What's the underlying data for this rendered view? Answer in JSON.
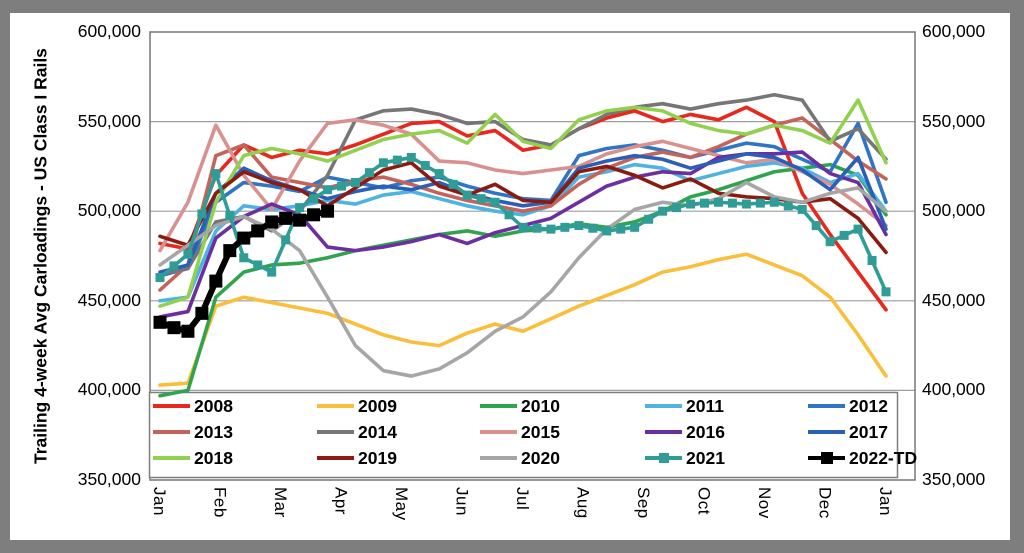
{
  "frame": {
    "outer_background": "#7E7E7E",
    "panel_background": "#FFFFFF",
    "plot_border_color": "#7F7F7F",
    "gridline_color": "#9E9E9E"
  },
  "chart_data": {
    "type": "line",
    "title": "",
    "ylabel": "Trailing 4-week Avg Carloadings - US Class I Rails",
    "xlabel": "",
    "x_unit": "weeks",
    "points_per_year": 52,
    "grid": "horizontal",
    "legend_position": "bottom-inside",
    "x_tick_labels": [
      "Jan",
      "Feb",
      "Mar",
      "Apr",
      "May",
      "Jun",
      "Jul",
      "Aug",
      "Sep",
      "Oct",
      "Nov",
      "Dec",
      "Jan"
    ],
    "y_axis": {
      "min": 350000,
      "max": 600000,
      "step": 50000,
      "tick_labels": [
        "600,000",
        "550,000",
        "500,000",
        "450,000",
        "400,000",
        "350,000"
      ],
      "shown_on": "both"
    },
    "series": [
      {
        "name": "2008",
        "color": "#E8271D",
        "week_step": 2,
        "values": [
          482000,
          479000,
          520000,
          537000,
          530000,
          534000,
          532000,
          537000,
          543000,
          549000,
          550000,
          542000,
          545000,
          534000,
          537000,
          546000,
          552000,
          556000,
          550000,
          554000,
          551000,
          558000,
          550000,
          510000,
          487000,
          466000,
          445000
        ]
      },
      {
        "name": "2009",
        "color": "#FBBE3B",
        "week_step": 2,
        "values": [
          403000,
          404000,
          447000,
          452000,
          449000,
          446000,
          443000,
          437000,
          431000,
          427000,
          425000,
          432000,
          437000,
          433000,
          440000,
          447000,
          453000,
          459000,
          466000,
          469000,
          473000,
          476000,
          470000,
          464000,
          452000,
          431000,
          408000
        ]
      },
      {
        "name": "2010",
        "color": "#2FA44D",
        "week_step": 2,
        "values": [
          397000,
          400000,
          452000,
          466000,
          470000,
          471000,
          474000,
          478000,
          481000,
          484000,
          487000,
          489000,
          486000,
          489000,
          490000,
          493000,
          491000,
          494000,
          500000,
          508000,
          512000,
          517000,
          522000,
          524000,
          526000,
          520000,
          498000
        ]
      },
      {
        "name": "2011",
        "color": "#4FB3E2",
        "week_step": 2,
        "values": [
          450000,
          452000,
          489000,
          503000,
          501000,
          503000,
          506000,
          504000,
          509000,
          511000,
          507000,
          503000,
          500000,
          498000,
          503000,
          519000,
          522000,
          526000,
          524000,
          517000,
          521000,
          525000,
          527000,
          524000,
          516000,
          521000,
          500000
        ]
      },
      {
        "name": "2012",
        "color": "#2E75C6",
        "week_step": 2,
        "values": [
          464000,
          468000,
          505000,
          516000,
          514000,
          511000,
          519000,
          516000,
          513000,
          517000,
          519000,
          514000,
          510000,
          507000,
          506000,
          531000,
          535000,
          537000,
          534000,
          530000,
          534000,
          538000,
          536000,
          529000,
          522000,
          549000,
          505000
        ]
      },
      {
        "name": "2013",
        "color": "#C4635A",
        "week_step": 2,
        "values": [
          456000,
          470000,
          531000,
          537000,
          519000,
          516000,
          513000,
          517000,
          519000,
          515000,
          510000,
          506000,
          503000,
          500000,
          503000,
          515000,
          524000,
          530000,
          533000,
          530000,
          536000,
          543000,
          548000,
          552000,
          540000,
          528000,
          518000
        ]
      },
      {
        "name": "2014",
        "color": "#767679",
        "week_step": 2,
        "values": [
          465000,
          468000,
          494000,
          497000,
          489000,
          500000,
          520000,
          551000,
          556000,
          557000,
          554000,
          549000,
          550000,
          540000,
          537000,
          546000,
          554000,
          558000,
          560000,
          557000,
          560000,
          562000,
          565000,
          562000,
          539000,
          546000,
          529000
        ]
      },
      {
        "name": "2015",
        "color": "#D9918F",
        "week_step": 2,
        "values": [
          478000,
          505000,
          548000,
          520000,
          501000,
          528000,
          549000,
          551000,
          548000,
          543000,
          528000,
          527000,
          523000,
          521000,
          523000,
          525000,
          532000,
          536000,
          539000,
          535000,
          531000,
          527000,
          529000,
          522000,
          515000,
          504000,
          492000
        ]
      },
      {
        "name": "2016",
        "color": "#6B2FA0",
        "week_step": 2,
        "values": [
          441000,
          444000,
          485000,
          497000,
          504000,
          498000,
          480000,
          478000,
          480000,
          483000,
          487000,
          482000,
          488000,
          492000,
          496000,
          505000,
          514000,
          519000,
          522000,
          521000,
          530000,
          532000,
          532000,
          533000,
          521000,
          516000,
          487000
        ]
      },
      {
        "name": "2017",
        "color": "#2A5FB8",
        "week_step": 2,
        "values": [
          466000,
          470000,
          510000,
          524000,
          517000,
          512000,
          507000,
          511000,
          514000,
          512000,
          516000,
          510000,
          506000,
          503000,
          505000,
          524000,
          528000,
          531000,
          529000,
          524000,
          528000,
          532000,
          530000,
          523000,
          512000,
          530000,
          490000
        ]
      },
      {
        "name": "2018",
        "color": "#92D050",
        "week_step": 2,
        "values": [
          447000,
          452000,
          505000,
          531000,
          535000,
          532000,
          528000,
          534000,
          540000,
          543000,
          545000,
          538000,
          554000,
          539000,
          535000,
          551000,
          556000,
          558000,
          556000,
          549000,
          545000,
          543000,
          548000,
          545000,
          538000,
          562000,
          527000
        ]
      },
      {
        "name": "2019",
        "color": "#8B1B10",
        "week_step": 2,
        "values": [
          486000,
          481000,
          510000,
          522000,
          516000,
          512000,
          503000,
          513000,
          523000,
          527000,
          514000,
          509000,
          515000,
          506000,
          505000,
          522000,
          525000,
          520000,
          513000,
          518000,
          510000,
          508000,
          507000,
          505000,
          507000,
          496000,
          477000
        ]
      },
      {
        "name": "2020",
        "color": "#A6A6A6",
        "week_step": 2,
        "values": [
          470000,
          481000,
          492000,
          497000,
          490000,
          478000,
          452000,
          425000,
          411000,
          408000,
          412000,
          421000,
          433000,
          441000,
          455000,
          474000,
          490000,
          501000,
          505000,
          503000,
          507000,
          516000,
          508000,
          505000,
          510000,
          513000,
          500000
        ]
      },
      {
        "name": "2021",
        "color": "#2F9D96",
        "marker": "square",
        "marker_size": 9,
        "midpoint_markers": true,
        "week_step": 2,
        "values": [
          463000,
          476000,
          521000,
          474000,
          466000,
          502000,
          512000,
          516000,
          527000,
          530000,
          521000,
          509000,
          505000,
          491000,
          490000,
          492000,
          489000,
          491000,
          500000,
          504000,
          505000,
          504000,
          505000,
          501000,
          483000,
          490000,
          455000
        ]
      },
      {
        "name": "2022-TD",
        "color": "#000000",
        "marker": "square",
        "marker_size": 13,
        "line_width": 6,
        "week_step": 1,
        "values": [
          438000,
          435000,
          433000,
          443000,
          461000,
          478000,
          485000,
          489000,
          494000,
          496000,
          495000,
          498000,
          500000
        ]
      }
    ]
  }
}
